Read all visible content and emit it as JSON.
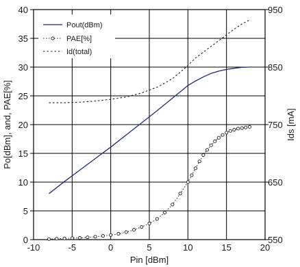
{
  "chart_data": {
    "type": "line",
    "xlabel": "Pin [dBm]",
    "ylabel_left": "Po[dBm], and, PAE[%]",
    "ylabel_right": "Ids [mA]",
    "xlim": [
      -10,
      20
    ],
    "ylim_left": [
      0,
      40
    ],
    "ylim_right": [
      550,
      950
    ],
    "x_ticks": [
      -10,
      -5,
      0,
      5,
      10,
      15,
      20
    ],
    "y_left_ticks": [
      0,
      5,
      10,
      15,
      20,
      25,
      30,
      35,
      40
    ],
    "y_right_ticks": [
      550,
      650,
      750,
      850,
      950
    ],
    "grid": true,
    "legend_position": "top-left",
    "series": [
      {
        "name": "Pout(dBm)",
        "axis": "left",
        "style": "solid",
        "color": "#1f2a6e",
        "x": [
          -8,
          -6,
          -4,
          -2,
          0,
          2,
          4,
          6,
          8,
          10,
          11,
          12,
          13,
          14,
          15,
          16,
          17,
          18
        ],
        "y": [
          8.0,
          10.1,
          12.1,
          14.1,
          16.1,
          18.2,
          20.3,
          22.4,
          24.6,
          26.8,
          27.6,
          28.3,
          28.9,
          29.3,
          29.6,
          29.8,
          29.95,
          30.0
        ]
      },
      {
        "name": "PAE[%]",
        "axis": "left",
        "style": "dotted-circles",
        "color": "#1a1a1a",
        "x": [
          -8,
          -7,
          -6,
          -5,
          -4,
          -3,
          -2,
          -1,
          0,
          1,
          2,
          3,
          4,
          5,
          6,
          7,
          8,
          9,
          10,
          10.5,
          11,
          11.5,
          12,
          12.5,
          13,
          13.5,
          14,
          14.5,
          15,
          15.5,
          16,
          16.5,
          17,
          17.5,
          18
        ],
        "y": [
          0.1,
          0.15,
          0.2,
          0.25,
          0.3,
          0.4,
          0.5,
          0.65,
          0.8,
          1.0,
          1.3,
          1.7,
          2.2,
          2.8,
          3.6,
          4.7,
          6.1,
          8.0,
          10.0,
          11.2,
          12.4,
          13.6,
          14.7,
          15.6,
          16.4,
          17.1,
          17.7,
          18.2,
          18.6,
          18.9,
          19.1,
          19.3,
          19.4,
          19.5,
          19.6
        ]
      },
      {
        "name": "Id(total)",
        "axis": "right",
        "style": "dashed",
        "color": "#1a1a1a",
        "x": [
          -8,
          -6,
          -4,
          -2,
          0,
          2,
          4,
          6,
          7,
          8,
          9,
          10,
          11,
          12,
          13,
          14,
          15,
          16,
          17,
          18
        ],
        "y": [
          788,
          788,
          789,
          791,
          794,
          798,
          805,
          815,
          822,
          830,
          841,
          853,
          866,
          876,
          886,
          896,
          906,
          916,
          925,
          932
        ]
      }
    ]
  }
}
